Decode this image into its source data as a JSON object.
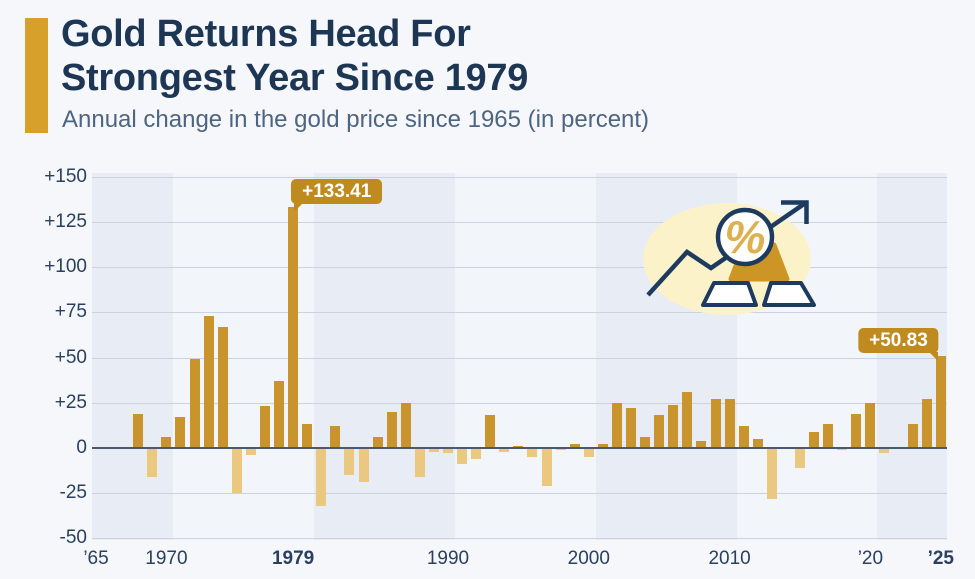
{
  "header": {
    "title_line1": "Gold Returns Head For",
    "title_line2": "Strongest Year Since 1979",
    "subtitle": "Annual change in the gold price since 1965 (in percent)"
  },
  "icon": {
    "name": "gold-bars-percent-trend-icon",
    "percent_glyph": "%"
  },
  "chart_data": {
    "type": "bar",
    "title": "Gold Returns Head For Strongest Year Since 1979",
    "subtitle": "Annual change in the gold price since 1965 (in percent)",
    "unit": "percent",
    "start_year": 1965,
    "end_year": 2025,
    "ylim": [
      -50,
      150
    ],
    "grid": true,
    "values": [
      0,
      0,
      0,
      19,
      -16,
      6,
      17,
      49,
      73,
      67,
      -25,
      -4,
      23,
      37,
      133.41,
      13,
      -32,
      12,
      -15,
      -19,
      6,
      20,
      25,
      -16,
      -2,
      -3,
      -9,
      -6,
      18,
      -2,
      1,
      -5,
      -21,
      -1,
      2,
      -5,
      2,
      25,
      22,
      6,
      18,
      24,
      31,
      4,
      27,
      27,
      12,
      5,
      -28,
      0,
      -11,
      9,
      13,
      -1,
      19,
      25,
      -3,
      0,
      13,
      27,
      50.83
    ],
    "y_ticks": [
      {
        "value": 150,
        "label": "+150"
      },
      {
        "value": 125,
        "label": "+125"
      },
      {
        "value": 100,
        "label": "+100"
      },
      {
        "value": 75,
        "label": "+75"
      },
      {
        "value": 50,
        "label": "+50"
      },
      {
        "value": 25,
        "label": "+25"
      },
      {
        "value": 0,
        "label": "0"
      },
      {
        "value": -25,
        "label": "-25"
      },
      {
        "value": -50,
        "label": "-50"
      }
    ],
    "x_ticks": [
      {
        "year": 1965,
        "label": "’65",
        "bold": false
      },
      {
        "year": 1970,
        "label": "1970",
        "bold": false
      },
      {
        "year": 1979,
        "label": "1979",
        "bold": true
      },
      {
        "year": 1990,
        "label": "1990",
        "bold": false
      },
      {
        "year": 2000,
        "label": "2000",
        "bold": false
      },
      {
        "year": 2010,
        "label": "2010",
        "bold": false
      },
      {
        "year": 2020,
        "label": "’20",
        "bold": false
      },
      {
        "year": 2025,
        "label": "’25",
        "bold": true
      }
    ],
    "annotations": [
      {
        "year": 1979,
        "label": "+133.41",
        "tail": "bottom-left"
      },
      {
        "year": 2025,
        "label": "+50.83",
        "tail": "bottom-right"
      }
    ],
    "decade_bands": {
      "boundaries": [
        1970.5,
        1980.5,
        1990.5,
        2000.5,
        2010.5,
        2020.5
      ],
      "first_shade": "dark"
    },
    "colors": {
      "positive_bar": "#c9942c",
      "negative_bar": "#eac87f",
      "callout_bg": "#bf8b1e",
      "gridline": "#ccd3df",
      "zero_line": "#4a596e",
      "band_dark": "#e8ecf4",
      "band_light": "#f2f5fa",
      "axis_label": "#29405e",
      "title": "#1c3654",
      "subtitle": "#4e6480",
      "accent": "#d7a02b",
      "page_bg": "#f5f7fb"
    }
  }
}
